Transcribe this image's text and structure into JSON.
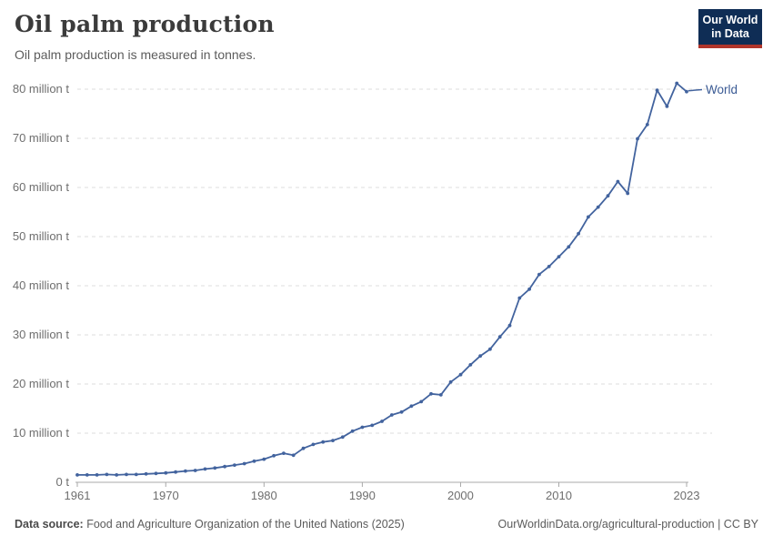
{
  "header": {
    "title": "Oil palm production",
    "subtitle": "Oil palm production is measured in tonnes."
  },
  "logo": {
    "line1": "Our World",
    "line2": "in Data",
    "background_color": "#0f2d55",
    "accent_color": "#b0352b"
  },
  "chart_data": {
    "type": "line",
    "title": "Oil palm production",
    "unit": "tonnes",
    "values_unit": "million tonnes",
    "xlim": [
      1961,
      2023
    ],
    "ylim": [
      0,
      80
    ],
    "grid": "horizontal-dashed",
    "legend_position": "end-of-line",
    "x_ticks": [
      "1961",
      "1970",
      "1980",
      "1990",
      "2000",
      "2010",
      "2023"
    ],
    "y_ticks": [
      {
        "value": 0,
        "label": "0 t"
      },
      {
        "value": 10,
        "label": "10 million t"
      },
      {
        "value": 20,
        "label": "20 million t"
      },
      {
        "value": 30,
        "label": "30 million t"
      },
      {
        "value": 40,
        "label": "40 million t"
      },
      {
        "value": 50,
        "label": "50 million t"
      },
      {
        "value": 60,
        "label": "60 million t"
      },
      {
        "value": 70,
        "label": "70 million t"
      },
      {
        "value": 80,
        "label": "80 million t"
      }
    ],
    "series": [
      {
        "name": "World",
        "color": "#42639e",
        "years": [
          1961,
          1962,
          1963,
          1964,
          1965,
          1966,
          1967,
          1968,
          1969,
          1970,
          1971,
          1972,
          1973,
          1974,
          1975,
          1976,
          1977,
          1978,
          1979,
          1980,
          1981,
          1982,
          1983,
          1984,
          1985,
          1986,
          1987,
          1988,
          1989,
          1990,
          1991,
          1992,
          1993,
          1994,
          1995,
          1996,
          1997,
          1998,
          1999,
          2000,
          2001,
          2002,
          2003,
          2004,
          2005,
          2006,
          2007,
          2008,
          2009,
          2010,
          2011,
          2012,
          2013,
          2014,
          2015,
          2016,
          2017,
          2018,
          2019,
          2020,
          2021,
          2022,
          2023
        ],
        "values": [
          1.5,
          1.5,
          1.5,
          1.6,
          1.5,
          1.6,
          1.6,
          1.7,
          1.8,
          1.9,
          2.1,
          2.3,
          2.4,
          2.7,
          2.9,
          3.2,
          3.5,
          3.8,
          4.3,
          4.7,
          5.4,
          5.9,
          5.5,
          6.9,
          7.7,
          8.2,
          8.5,
          9.2,
          10.4,
          11.2,
          11.6,
          12.4,
          13.7,
          14.3,
          15.5,
          16.4,
          18.0,
          17.8,
          20.4,
          21.9,
          23.9,
          25.7,
          27.1,
          29.6,
          31.9,
          37.5,
          39.3,
          42.3,
          43.9,
          45.9,
          47.9,
          50.6,
          54.0,
          56.0,
          58.3,
          61.2,
          58.8,
          69.9,
          72.8,
          79.8,
          76.5,
          81.2,
          79.5
        ]
      }
    ]
  },
  "series_label": "World",
  "footer": {
    "source_label": "Data source:",
    "source": "Food and Agriculture Organization of the United Nations (2025)",
    "attribution": "OurWorldinData.org/agricultural-production | CC BY"
  }
}
